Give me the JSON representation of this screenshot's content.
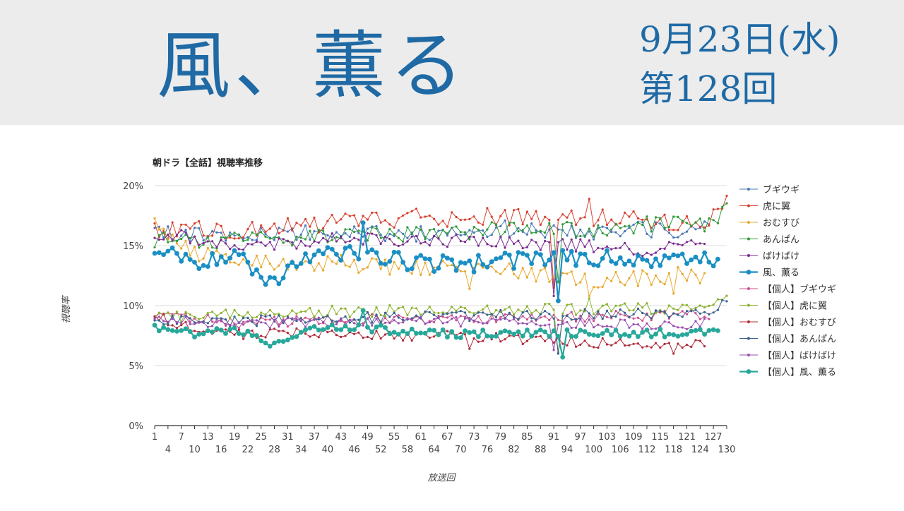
{
  "header": {
    "title": "風、薫る",
    "date": "9月23日(水)",
    "episode": "第128回"
  },
  "chart_data": {
    "type": "line",
    "title": "朝ドラ【全話】視聴率推移",
    "xlabel": "放送回",
    "ylabel": "視聴率",
    "ylim": [
      0,
      20
    ],
    "xlim": [
      1,
      130
    ],
    "y_ticks": [
      "0%",
      "5%",
      "10%",
      "15%",
      "20%"
    ],
    "x_ticks_top": [
      "1",
      "7",
      "13",
      "19",
      "25",
      "31",
      "37",
      "43",
      "49",
      "55",
      "61",
      "67",
      "73",
      "79",
      "85",
      "91",
      "97",
      "103",
      "109",
      "115",
      "121",
      "127"
    ],
    "x_ticks_bottom": [
      "4",
      "10",
      "16",
      "22",
      "28",
      "34",
      "40",
      "46",
      "52",
      "58",
      "64",
      "70",
      "76",
      "82",
      "88",
      "94",
      "100",
      "106",
      "112",
      "118",
      "124",
      "130"
    ],
    "legend_position": "right",
    "grid": true,
    "series": [
      {
        "name": "ブギウギ",
        "color": "#4a78b5",
        "bold": false,
        "episodes": 126,
        "anchors": [
          [
            1,
            16.0
          ],
          [
            20,
            15.8
          ],
          [
            40,
            16.1
          ],
          [
            60,
            16.0
          ],
          [
            80,
            16.4
          ],
          [
            100,
            16.2
          ],
          [
            110,
            16.3
          ],
          [
            120,
            16.2
          ],
          [
            126,
            16.6
          ]
        ],
        "noise": 0.7,
        "dips": []
      },
      {
        "name": "虎に翼",
        "color": "#d94030",
        "bold": false,
        "episodes": 130,
        "anchors": [
          [
            1,
            16.2
          ],
          [
            20,
            16.4
          ],
          [
            40,
            16.9
          ],
          [
            60,
            17.3
          ],
          [
            80,
            17.5
          ],
          [
            100,
            17.4
          ],
          [
            110,
            17.2
          ],
          [
            120,
            17.0
          ],
          [
            126,
            16.9
          ],
          [
            130,
            18.6
          ]
        ],
        "noise": 0.8,
        "dips": [
          [
            91,
            11.5
          ],
          [
            99,
            18.9
          ]
        ]
      },
      {
        "name": "おむすび",
        "color": "#e8a82e",
        "bold": false,
        "episodes": 125,
        "anchors": [
          [
            1,
            16.6
          ],
          [
            10,
            14.5
          ],
          [
            20,
            13.5
          ],
          [
            40,
            13.6
          ],
          [
            60,
            13.1
          ],
          [
            80,
            12.9
          ],
          [
            100,
            12.2
          ],
          [
            110,
            12.2
          ],
          [
            120,
            12.6
          ],
          [
            125,
            12.5
          ]
        ],
        "noise": 0.7,
        "dips": [
          [
            72,
            11.4
          ],
          [
            99,
            10.8
          ],
          [
            118,
            11.0
          ]
        ]
      },
      {
        "name": "あんぱん",
        "color": "#2f9a3a",
        "bold": false,
        "episodes": 130,
        "anchors": [
          [
            1,
            15.5
          ],
          [
            20,
            15.4
          ],
          [
            40,
            15.8
          ],
          [
            60,
            16.0
          ],
          [
            80,
            16.3
          ],
          [
            100,
            16.4
          ],
          [
            110,
            16.7
          ],
          [
            120,
            16.9
          ],
          [
            126,
            16.8
          ],
          [
            130,
            18.1
          ]
        ],
        "noise": 0.7,
        "dips": [
          [
            92,
            12.0
          ]
        ]
      },
      {
        "name": "ばけばけ",
        "color": "#7a2b8f",
        "bold": false,
        "episodes": 125,
        "anchors": [
          [
            1,
            16.1
          ],
          [
            20,
            15.0
          ],
          [
            40,
            15.5
          ],
          [
            60,
            15.4
          ],
          [
            80,
            15.2
          ],
          [
            100,
            15.0
          ],
          [
            110,
            14.7
          ],
          [
            120,
            14.8
          ],
          [
            125,
            15.2
          ]
        ],
        "noise": 0.6,
        "dips": [
          [
            91,
            10.8
          ]
        ]
      },
      {
        "name": "風、薫る",
        "color": "#1a8fc4",
        "bold": true,
        "episodes": 128,
        "anchors": [
          [
            1,
            14.8
          ],
          [
            10,
            13.5
          ],
          [
            20,
            14.0
          ],
          [
            27,
            12.1
          ],
          [
            40,
            14.6
          ],
          [
            50,
            14.0
          ],
          [
            60,
            13.6
          ],
          [
            70,
            13.4
          ],
          [
            80,
            13.7
          ],
          [
            90,
            13.9
          ],
          [
            100,
            14.0
          ],
          [
            110,
            13.8
          ],
          [
            120,
            13.9
          ],
          [
            128,
            13.9
          ]
        ],
        "noise": 0.7,
        "dips": [
          [
            48,
            16.9
          ],
          [
            92,
            10.4
          ]
        ]
      },
      {
        "name": "【個人】ブギウギ",
        "color": "#cc4f8f",
        "bold": false,
        "episodes": 126,
        "anchors": [
          [
            1,
            9.3
          ],
          [
            20,
            8.5
          ],
          [
            40,
            8.8
          ],
          [
            60,
            8.9
          ],
          [
            80,
            9.0
          ],
          [
            100,
            9.1
          ],
          [
            120,
            9.2
          ],
          [
            126,
            9.3
          ]
        ],
        "noise": 0.45,
        "dips": []
      },
      {
        "name": "【個人】虎に翼",
        "color": "#8db32f",
        "bold": false,
        "episodes": 130,
        "anchors": [
          [
            1,
            9.0
          ],
          [
            20,
            9.2
          ],
          [
            40,
            9.5
          ],
          [
            60,
            9.6
          ],
          [
            80,
            9.6
          ],
          [
            100,
            9.7
          ],
          [
            110,
            9.8
          ],
          [
            120,
            9.6
          ],
          [
            126,
            9.7
          ],
          [
            130,
            10.6
          ]
        ],
        "noise": 0.5,
        "dips": [
          [
            92,
            6.1
          ],
          [
            99,
            10.6
          ]
        ]
      },
      {
        "name": "【個人】おむすび",
        "color": "#b02a3a",
        "bold": false,
        "episodes": 125,
        "anchors": [
          [
            1,
            9.2
          ],
          [
            10,
            8.0
          ],
          [
            20,
            7.6
          ],
          [
            40,
            7.8
          ],
          [
            60,
            7.5
          ],
          [
            80,
            7.3
          ],
          [
            100,
            6.9
          ],
          [
            110,
            6.9
          ],
          [
            120,
            6.9
          ],
          [
            125,
            7.0
          ]
        ],
        "noise": 0.45,
        "dips": [
          [
            72,
            6.4
          ],
          [
            118,
            6.0
          ]
        ]
      },
      {
        "name": "【個人】あんぱん",
        "color": "#3a5f8c",
        "bold": false,
        "episodes": 130,
        "anchors": [
          [
            1,
            8.8
          ],
          [
            20,
            8.7
          ],
          [
            40,
            8.9
          ],
          [
            60,
            9.1
          ],
          [
            80,
            9.2
          ],
          [
            100,
            9.3
          ],
          [
            110,
            9.3
          ],
          [
            120,
            9.4
          ],
          [
            126,
            9.5
          ],
          [
            130,
            10.2
          ]
        ],
        "noise": 0.45,
        "dips": [
          [
            92,
            6.0
          ]
        ]
      },
      {
        "name": "【個人】ばけばけ",
        "color": "#9a4fb0",
        "bold": false,
        "episodes": 125,
        "anchors": [
          [
            1,
            8.9
          ],
          [
            20,
            8.4
          ],
          [
            40,
            8.7
          ],
          [
            60,
            8.7
          ],
          [
            80,
            8.6
          ],
          [
            100,
            8.5
          ],
          [
            110,
            8.4
          ],
          [
            120,
            8.4
          ],
          [
            125,
            8.6
          ]
        ],
        "noise": 0.4,
        "dips": [
          [
            91,
            6.3
          ]
        ]
      },
      {
        "name": "【個人】風、薫る",
        "color": "#27a89a",
        "bold": true,
        "episodes": 128,
        "anchors": [
          [
            1,
            8.3
          ],
          [
            10,
            7.6
          ],
          [
            20,
            7.9
          ],
          [
            27,
            6.9
          ],
          [
            40,
            8.3
          ],
          [
            50,
            8.1
          ],
          [
            60,
            7.7
          ],
          [
            70,
            7.6
          ],
          [
            80,
            7.7
          ],
          [
            90,
            7.7
          ],
          [
            100,
            7.8
          ],
          [
            110,
            7.7
          ],
          [
            120,
            7.7
          ],
          [
            128,
            7.8
          ]
        ],
        "noise": 0.35,
        "dips": [
          [
            48,
            9.6
          ],
          [
            93,
            5.7
          ]
        ]
      }
    ]
  }
}
